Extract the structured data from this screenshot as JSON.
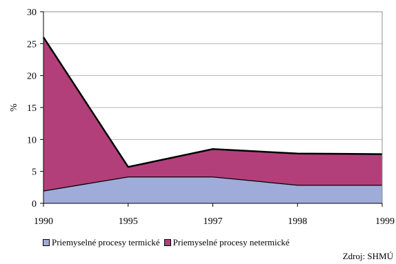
{
  "chart_data": {
    "type": "area",
    "stacked": true,
    "categories": [
      "1990",
      "1995",
      "1997",
      "1998",
      "1999"
    ],
    "series": [
      {
        "name": "Priemyselné procesy termické",
        "values": [
          2,
          4.2,
          4.2,
          2.9,
          2.9
        ],
        "color": "#9fabd8"
      },
      {
        "name": "Priemyselné procesy netermické",
        "values": [
          24,
          1.5,
          4.3,
          4.9,
          4.8
        ],
        "color": "#b33f7a"
      }
    ],
    "ylabel": "%",
    "ylim": [
      0,
      30
    ],
    "yticks": [
      "0",
      "5",
      "10",
      "15",
      "20",
      "25",
      "30"
    ],
    "grid": true,
    "legend": "bottom"
  },
  "source_text": "Zdroj: SHMÚ"
}
